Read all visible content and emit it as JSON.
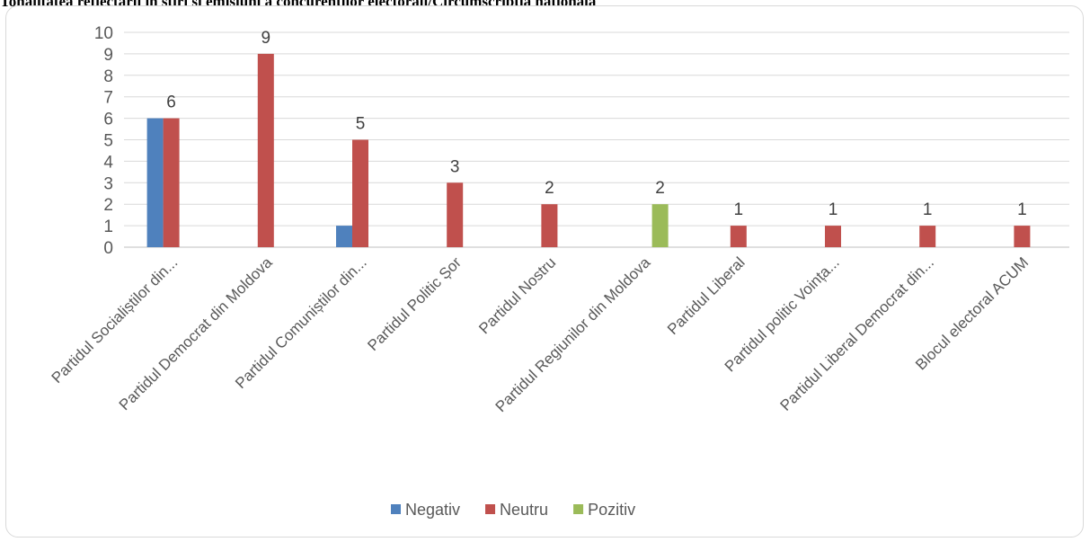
{
  "title": "Tonalitatea reflectării în știri și emisiuni a concurenților electorali/Circumscripția națională",
  "chart_data": {
    "type": "bar",
    "categories": [
      "Partidul Socialiștilor din...",
      "Partidul Democrat din Moldova",
      "Partidul Comuniștilor din...",
      "Partidul Politic Șor",
      "Partidul Nostru",
      "Partidul Regiunilor din Moldova",
      "Partidul Liberal",
      "Partidul politic Voința...",
      "Partidul Liberal Democrat din...",
      "Blocul electoral ACUM"
    ],
    "series": [
      {
        "name": "Negativ",
        "color": "#4f81bd",
        "values": [
          6,
          0,
          1,
          0,
          0,
          0,
          0,
          0,
          0,
          0
        ]
      },
      {
        "name": "Neutru",
        "color": "#c0504d",
        "values": [
          6,
          9,
          5,
          3,
          2,
          0,
          1,
          1,
          1,
          1
        ]
      },
      {
        "name": "Pozitiv",
        "color": "#9bbb59",
        "values": [
          0,
          0,
          0,
          0,
          0,
          2,
          0,
          0,
          0,
          0
        ]
      }
    ],
    "data_labels": [
      {
        "category": 0,
        "series": 1,
        "text": "6"
      },
      {
        "category": 1,
        "series": 1,
        "text": "9"
      },
      {
        "category": 2,
        "series": 1,
        "text": "5"
      },
      {
        "category": 3,
        "series": 1,
        "text": "3"
      },
      {
        "category": 4,
        "series": 1,
        "text": "2"
      },
      {
        "category": 5,
        "series": 2,
        "text": "2"
      },
      {
        "category": 6,
        "series": 1,
        "text": "1"
      },
      {
        "category": 7,
        "series": 1,
        "text": "1"
      },
      {
        "category": 8,
        "series": 1,
        "text": "1"
      },
      {
        "category": 9,
        "series": 1,
        "text": "1"
      }
    ],
    "ylim": [
      0,
      10
    ],
    "yticks": [
      0,
      1,
      2,
      3,
      4,
      5,
      6,
      7,
      8,
      9,
      10
    ],
    "grid": true,
    "legend_position": "bottom"
  }
}
